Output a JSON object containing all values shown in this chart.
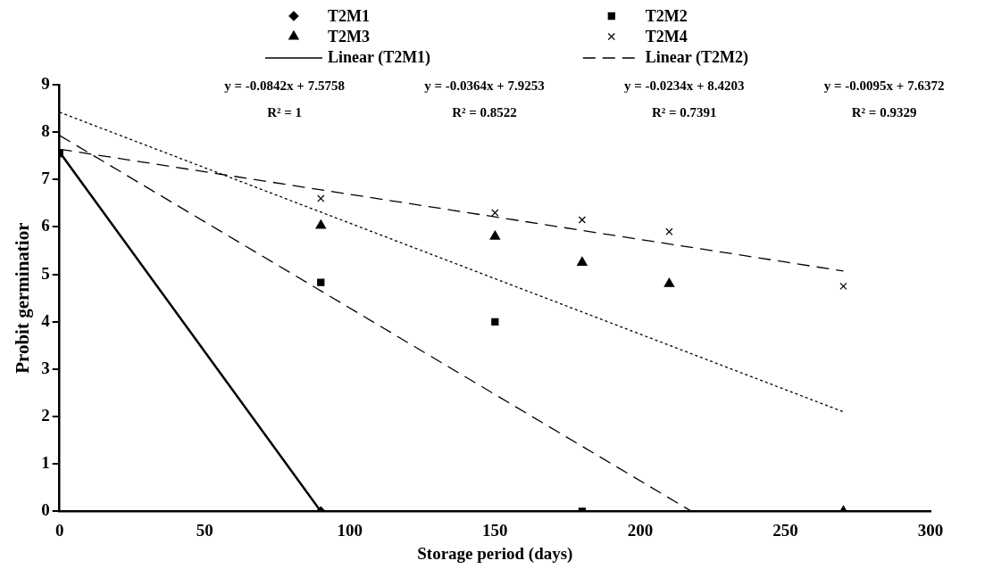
{
  "chart_data": {
    "type": "scatter",
    "xlabel": "Storage period (days)",
    "ylabel": "Probit germinatior",
    "xlim": [
      0,
      300
    ],
    "xticks": [
      0,
      50,
      100,
      150,
      200,
      250,
      300
    ],
    "ylim": [
      0,
      9
    ],
    "yticks": [
      0,
      1,
      2,
      3,
      4,
      5,
      6,
      7,
      8,
      9
    ],
    "grid": false,
    "legend": "top",
    "series": [
      {
        "name": "T2M1",
        "color": "#000000",
        "marker": "diamond",
        "x": [
          90
        ],
        "values": [
          0
        ]
      },
      {
        "name": "T2M2",
        "color": "#000000",
        "marker": "square",
        "x": [
          0,
          90,
          150,
          180
        ],
        "values": [
          7.55,
          4.83,
          4.0,
          0
        ]
      },
      {
        "name": "T2M3",
        "color": "#000000",
        "marker": "triangle",
        "x": [
          90,
          150,
          180,
          210,
          270
        ],
        "values": [
          6.03,
          5.8,
          5.25,
          4.8,
          0
        ]
      },
      {
        "name": "T2M4",
        "color": "#000000",
        "marker": "cross",
        "x": [
          90,
          150,
          180,
          210,
          270
        ],
        "values": [
          6.6,
          6.3,
          6.15,
          5.9,
          4.75
        ]
      },
      {
        "name": "Linear (T2M1)",
        "type": "line",
        "color": "#000000",
        "marker": "none",
        "line_style": "solid",
        "x": [
          0,
          90
        ],
        "values": [
          7.58,
          0
        ]
      },
      {
        "name": "Linear (T2M2)",
        "type": "line",
        "color": "#000000",
        "marker": "none",
        "line_style": "dashed",
        "x": [
          0,
          217.7
        ],
        "values": [
          7.93,
          0
        ]
      },
      {
        "type": "line",
        "color": "#000000",
        "marker": "none",
        "line_style": "dotted",
        "x": [
          0,
          270
        ],
        "values": [
          8.42,
          2.1
        ]
      },
      {
        "type": "line",
        "color": "#000000",
        "marker": "none",
        "line_style": "dashed",
        "x": [
          0,
          270
        ],
        "values": [
          7.64,
          5.07
        ]
      }
    ],
    "annotations": [
      "y = -0.0842x + 7.5758\nR² = 1",
      "y = -0.0364x + 7.9253\nR² = 0.8522",
      "y = -0.0234x + 8.4203\nR² = 0.7391",
      "y = -0.0095x + 7.6372\nR² = 0.9329"
    ]
  }
}
